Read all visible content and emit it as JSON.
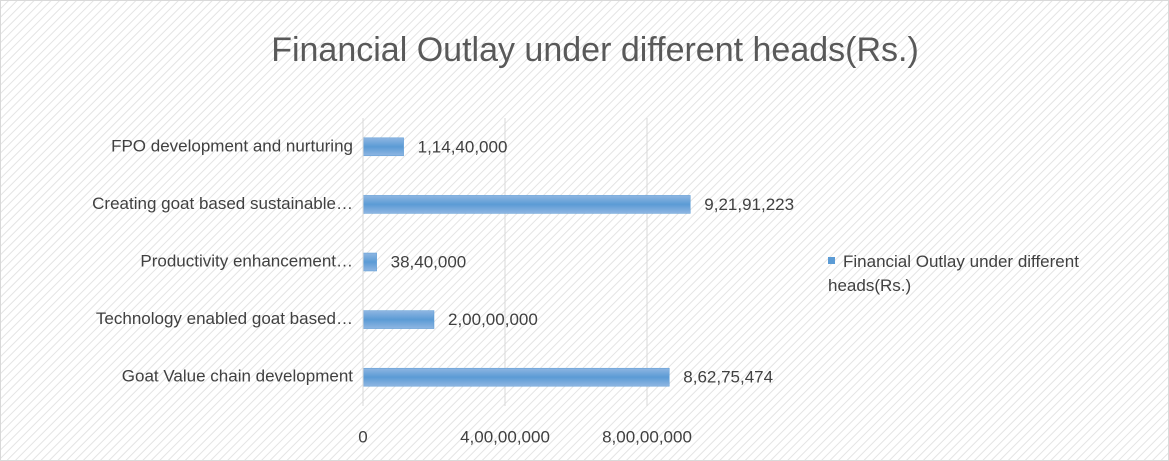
{
  "chart_data": {
    "type": "bar",
    "orientation": "horizontal",
    "title": "Financial Outlay under different heads(Rs.)",
    "categories": [
      "FPO development and nurturing",
      "Creating goat based sustainable…",
      "Productivity enhancement…",
      "Technology enabled goat based…",
      "Goat Value chain development"
    ],
    "series": [
      {
        "name": "Financial Outlay under different heads(Rs.)",
        "color": "#5b9bd5",
        "values": [
          11440000,
          92191223,
          3840000,
          20000000,
          86275474
        ],
        "value_labels": [
          "1,14,40,000",
          "9,21,91,223",
          "38,40,000",
          "2,00,00,000",
          "8,62,75,474"
        ]
      }
    ],
    "xlim": [
      0,
      100000000
    ],
    "xticks": [
      0,
      {
        "value": 40000000,
        "label": "4,00,00,000"
      },
      {
        "value": 80000000,
        "label": "8,00,00,000"
      }
    ],
    "grid": true,
    "legend": "right"
  }
}
